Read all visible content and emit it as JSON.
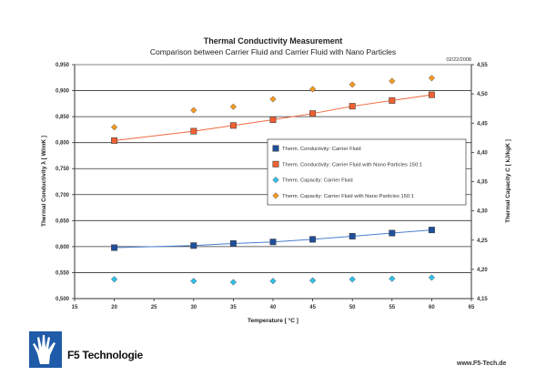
{
  "chart_data": {
    "type": "scatter",
    "title": "Thermal Conductivity Measurement",
    "subtitle": "Comparison between Carrier Fluid and Carrier Fluid with Nano Particles",
    "date": "02/22/2008",
    "xlabel": "Temperature  [ °C ]",
    "ylabel": "Thermal Conductivity λ  [ W/mK ]",
    "y2label": "Thermal Capacity C  [ kJ/kgK ]",
    "xlim": [
      15,
      65
    ],
    "ylim": [
      0.5,
      0.95
    ],
    "y2lim": [
      4.15,
      4.55
    ],
    "xticks": [
      "15",
      "20",
      "25",
      "30",
      "35",
      "40",
      "45",
      "50",
      "55",
      "60",
      "65"
    ],
    "yticks": [
      "0,500",
      "0,550",
      "0,600",
      "0,650",
      "0,700",
      "0,750",
      "0,800",
      "0,850",
      "0,900",
      "0,950"
    ],
    "y2ticks": [
      "4,15",
      "4,20",
      "4,25",
      "4,30",
      "4,35",
      "4,40",
      "4,45",
      "4,50",
      "4,55"
    ],
    "grid": true,
    "legend_position": "center-right",
    "x": [
      20,
      30,
      35,
      40,
      45,
      50,
      55,
      60
    ],
    "series": [
      {
        "name": "Therm. Conductivity: Carrier Fluid",
        "axis": "left",
        "marker": "square",
        "line": true,
        "color": "#1f4f9c",
        "line_color": "#4a7fd0",
        "values": [
          0.598,
          0.602,
          0.606,
          0.609,
          0.614,
          0.62,
          0.626,
          0.632
        ]
      },
      {
        "name": "Therm. Conductivity: Carrier Fluid with Nano Particles 150:1",
        "axis": "left",
        "marker": "square",
        "line": true,
        "color": "#f06030",
        "line_color": "#f06a40",
        "values": [
          0.804,
          0.822,
          0.833,
          0.844,
          0.856,
          0.87,
          0.881,
          0.892
        ]
      },
      {
        "name": "Therm. Capacity: Carrier Fluid",
        "axis": "right",
        "marker": "diamond",
        "line": false,
        "color": "#30c0e8",
        "values": [
          4.183,
          4.18,
          4.178,
          4.18,
          4.181,
          4.183,
          4.184,
          4.186
        ]
      },
      {
        "name": "Therm. Capacity: Carrier Fluid with Nano Particles 150:1",
        "axis": "right",
        "marker": "diamond",
        "line": false,
        "color": "#f59a20",
        "values": [
          4.443,
          4.472,
          4.478,
          4.491,
          4.508,
          4.516,
          4.522,
          4.527
        ]
      }
    ]
  },
  "footer": {
    "brand": "F5 Technologie",
    "url": "www.F5-Tech.de"
  }
}
